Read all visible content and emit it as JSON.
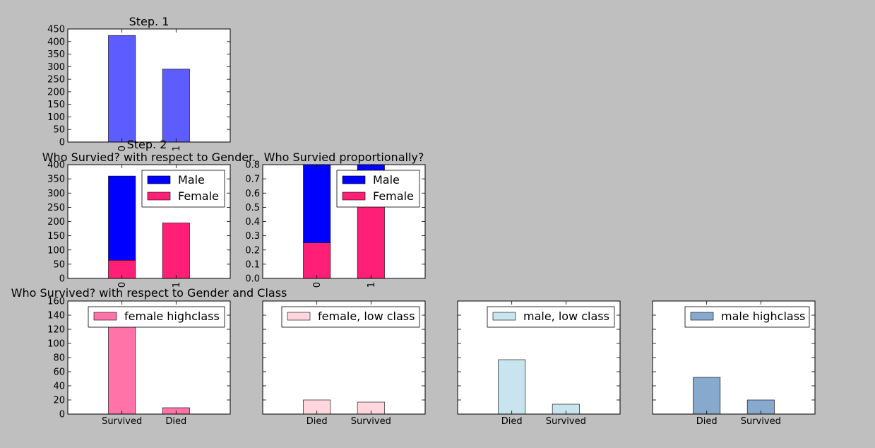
{
  "figure": {
    "background": "#bfbfbf"
  },
  "chart_data": [
    {
      "type": "bar",
      "title": "Step. 1",
      "categories": [
        "0",
        "1"
      ],
      "xtick_rotation": 90,
      "series": [
        {
          "values": [
            424,
            290
          ],
          "color": "#5c5cff"
        }
      ],
      "ylim": [
        0,
        450
      ],
      "yticks": [
        0,
        50,
        100,
        150,
        200,
        250,
        300,
        350,
        400,
        450
      ],
      "grid": false
    },
    {
      "type": "bar",
      "stacked": true,
      "title_lines": [
        "Step. 2",
        "Who Survied? with respect to Gender."
      ],
      "categories": [
        "0",
        "1"
      ],
      "xtick_rotation": 90,
      "series": [
        {
          "name": "Female",
          "values": [
            64,
            195
          ],
          "color": "#ff1f76"
        },
        {
          "name": "Male",
          "values": [
            296,
            0
          ],
          "color": "#0000ff"
        }
      ],
      "legend": {
        "placement": "top-right",
        "items": [
          "Male",
          "Female"
        ]
      },
      "ylim": [
        0,
        400
      ],
      "yticks": [
        0,
        50,
        100,
        150,
        200,
        250,
        300,
        350,
        400
      ],
      "grid": false
    },
    {
      "type": "bar",
      "stacked": true,
      "title": "Who Survied proportionally?",
      "categories": [
        "0",
        "1"
      ],
      "xtick_rotation": 90,
      "series": [
        {
          "name": "Female",
          "values": [
            0.25,
            0.68
          ],
          "color": "#ff1f76"
        },
        {
          "name": "Male",
          "values": [
            0.55,
            0.12
          ],
          "color": "#0000ff"
        }
      ],
      "legend": {
        "placement": "top-right",
        "items": [
          "Male",
          "Female"
        ]
      },
      "ylim": [
        0,
        0.8
      ],
      "yticks": [
        "0.0",
        "0.1",
        "0.2",
        "0.3",
        "0.4",
        "0.5",
        "0.6",
        "0.7",
        "0.8"
      ],
      "grid": false
    },
    {
      "type": "bar",
      "title": "Who Survived? with respect to Gender and Class",
      "categories": [
        "Survived",
        "Died"
      ],
      "series": [
        {
          "name": "female highclass",
          "values": [
            140,
            9
          ],
          "color": "#ff73a8"
        }
      ],
      "legend": {
        "placement": "top-right",
        "items": [
          "female highclass"
        ]
      },
      "ylim": [
        0,
        160
      ],
      "yticks": [
        0,
        20,
        40,
        60,
        80,
        100,
        120,
        140,
        160
      ],
      "grid": false
    },
    {
      "type": "bar",
      "categories": [
        "Died",
        "Survived"
      ],
      "series": [
        {
          "name": "female, low class",
          "values": [
            20,
            17
          ],
          "color": "#ffd6dd"
        }
      ],
      "legend": {
        "placement": "top-right",
        "items": [
          "female, low class"
        ]
      },
      "ylim": [
        0,
        160
      ],
      "yticks": [],
      "grid": false
    },
    {
      "type": "bar",
      "categories": [
        "Died",
        "Survived"
      ],
      "series": [
        {
          "name": "male, low class",
          "values": [
            77,
            14
          ],
          "color": "#c8e4ee"
        }
      ],
      "legend": {
        "placement": "top-right",
        "items": [
          "male, low class"
        ]
      },
      "ylim": [
        0,
        160
      ],
      "yticks": [],
      "grid": false
    },
    {
      "type": "bar",
      "categories": [
        "Died",
        "Survived"
      ],
      "series": [
        {
          "name": "male highclass",
          "values": [
            52,
            20
          ],
          "color": "#87a9cd"
        }
      ],
      "legend": {
        "placement": "top-right",
        "items": [
          "male highclass"
        ]
      },
      "ylim": [
        0,
        160
      ],
      "yticks": [],
      "grid": false
    }
  ]
}
